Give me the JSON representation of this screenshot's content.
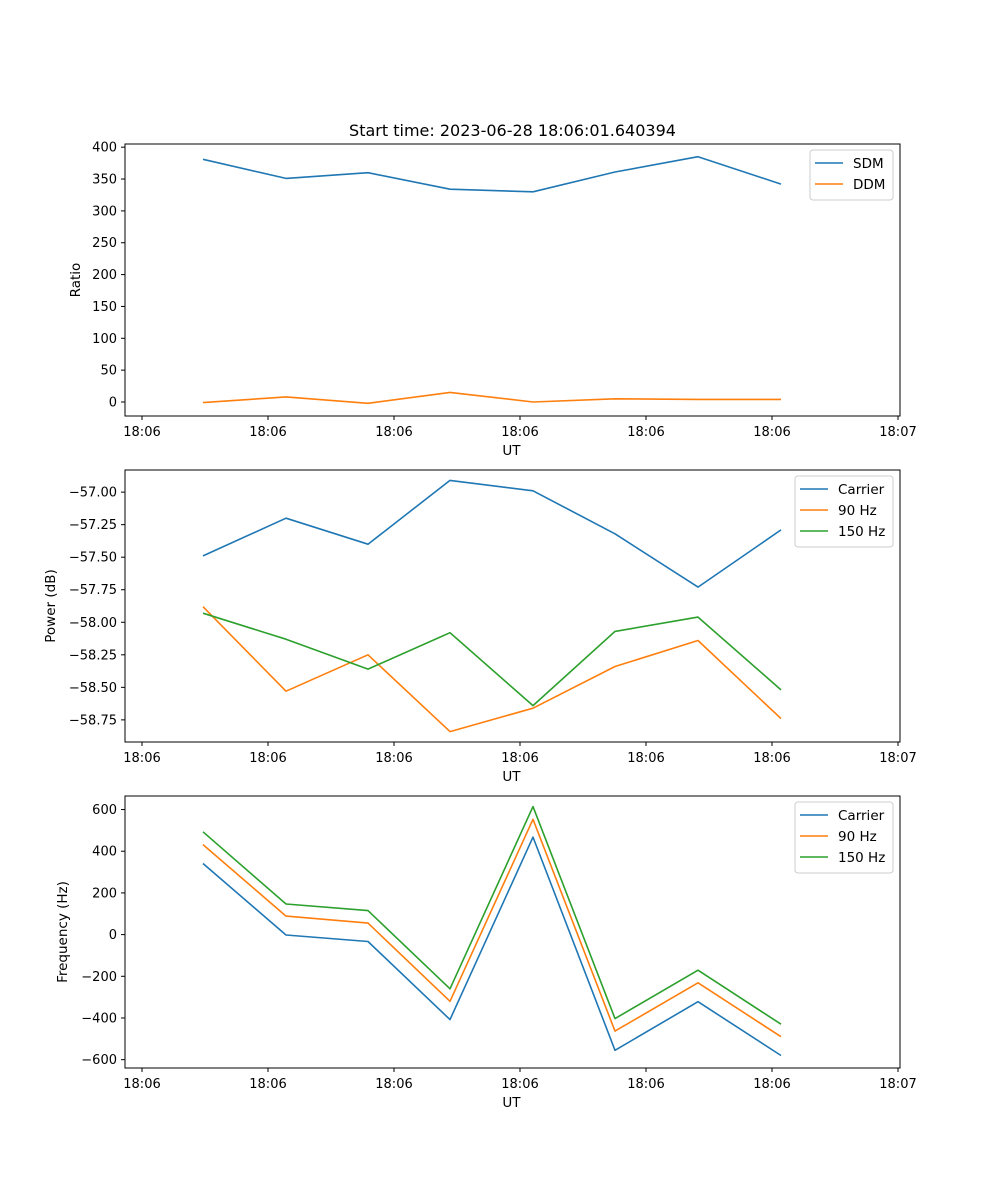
{
  "chart_data": [
    {
      "type": "line",
      "title": "Start time: 2023-06-28 18:06:01.640394",
      "xlabel": "UT",
      "ylabel": "Ratio",
      "x_ticks": [
        "18:06",
        "18:06",
        "18:06",
        "18:06",
        "18:06",
        "18:06",
        "18:07"
      ],
      "y_ticks": [
        "0",
        "50",
        "100",
        "150",
        "200",
        "250",
        "300",
        "350",
        "400"
      ],
      "ylim": [
        -22,
        405
      ],
      "legend_position": "upper-right",
      "grid": false,
      "series": [
        {
          "name": "SDM",
          "color": "#1f77b4",
          "values": [
            381,
            351,
            360,
            334,
            330,
            361,
            385,
            342
          ]
        },
        {
          "name": "DDM",
          "color": "#ff7f0e",
          "values": [
            -1,
            8,
            -2,
            15,
            0,
            5,
            4,
            4
          ]
        }
      ]
    },
    {
      "type": "line",
      "title": "",
      "xlabel": "UT",
      "ylabel": "Power (dB)",
      "x_ticks": [
        "18:06",
        "18:06",
        "18:06",
        "18:06",
        "18:06",
        "18:06",
        "18:07"
      ],
      "y_ticks": [
        "−58.75",
        "−58.50",
        "−58.25",
        "−58.00",
        "−57.75",
        "−57.50",
        "−57.25",
        "−57.00"
      ],
      "ylim": [
        -58.92,
        -56.83
      ],
      "legend_position": "upper-right",
      "grid": false,
      "series": [
        {
          "name": "Carrier",
          "color": "#1f77b4",
          "values": [
            -57.49,
            -57.2,
            -57.4,
            -56.91,
            -56.99,
            -57.32,
            -57.73,
            -57.29
          ]
        },
        {
          "name": "90 Hz",
          "color": "#ff7f0e",
          "values": [
            -57.88,
            -58.53,
            -58.25,
            -58.84,
            -58.66,
            -58.34,
            -58.14,
            -58.74
          ]
        },
        {
          "name": "150 Hz",
          "color": "#2ca02c",
          "values": [
            -57.93,
            -58.13,
            -58.36,
            -58.08,
            -58.64,
            -58.07,
            -57.96,
            -58.52
          ]
        }
      ]
    },
    {
      "type": "line",
      "title": "",
      "xlabel": "UT",
      "ylabel": "Frequency (Hz)",
      "x_ticks": [
        "18:06",
        "18:06",
        "18:06",
        "18:06",
        "18:06",
        "18:06",
        "18:07"
      ],
      "y_ticks": [
        "−600",
        "−400",
        "−200",
        "0",
        "200",
        "400",
        "600"
      ],
      "ylim": [
        -640,
        665
      ],
      "legend_position": "upper-right",
      "grid": false,
      "series": [
        {
          "name": "Carrier",
          "color": "#1f77b4",
          "values": [
            341,
            -2,
            -33,
            -408,
            468,
            -555,
            -322,
            -580
          ]
        },
        {
          "name": "90 Hz",
          "color": "#ff7f0e",
          "values": [
            432,
            89,
            55,
            -320,
            553,
            -463,
            -231,
            -490
          ]
        },
        {
          "name": "150 Hz",
          "color": "#2ca02c",
          "values": [
            493,
            147,
            115,
            -260,
            614,
            -403,
            -171,
            -430
          ]
        }
      ]
    }
  ]
}
